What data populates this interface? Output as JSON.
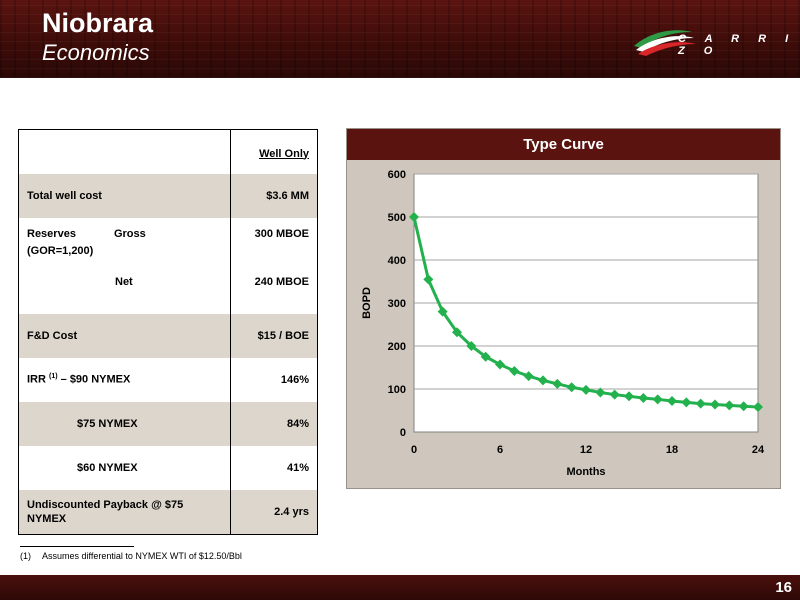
{
  "header": {
    "title": "Niobrara",
    "subtitle": "Economics",
    "logo_text": "C A R R I Z O"
  },
  "table": {
    "column_header": "Well Only",
    "rows": {
      "total_cost": {
        "label": "Total well cost",
        "value": "$3.6 MM"
      },
      "reserves": {
        "label": "Reserves",
        "label2": "(GOR=1,200)",
        "gross_label": "Gross",
        "gross_value": "300 MBOE",
        "net_label": "Net",
        "net_value": "240 MBOE"
      },
      "fd_cost": {
        "label": "F&D Cost",
        "value": "$15 / BOE"
      },
      "irr90": {
        "label_pre": "IRR",
        "sup": "(1)",
        "label_post": "– $90 NYMEX",
        "value": "146%"
      },
      "irr75": {
        "label": "$75 NYMEX",
        "value": "84%"
      },
      "irr60": {
        "label": "$60 NYMEX",
        "value": "41%"
      },
      "payback": {
        "label": "Undiscounted Payback @ $75 NYMEX",
        "value": "2.4 yrs"
      }
    }
  },
  "chart_data": {
    "type": "line",
    "title": "Type Curve",
    "xlabel": "Months",
    "ylabel": "BOPD",
    "xlim": [
      0,
      24
    ],
    "ylim": [
      0,
      600
    ],
    "x_ticks": [
      0,
      6,
      12,
      18,
      24
    ],
    "y_ticks": [
      0,
      100,
      200,
      300,
      400,
      500,
      600
    ],
    "grid": true,
    "series": [
      {
        "color": "#22b14c",
        "x": [
          0,
          1,
          2,
          3,
          4,
          5,
          6,
          7,
          8,
          9,
          10,
          11,
          12,
          13,
          14,
          15,
          16,
          17,
          18,
          19,
          20,
          21,
          22,
          23,
          24
        ],
        "y": [
          500,
          355,
          280,
          232,
          200,
          175,
          157,
          142,
          130,
          120,
          112,
          104,
          98,
          92,
          87,
          83,
          79,
          76,
          72,
          69,
          66,
          64,
          62,
          60,
          58
        ]
      }
    ]
  },
  "footnote": {
    "number": "(1)",
    "text": "Assumes differential to NYMEX WTI of $12.50/Bbl"
  },
  "page_number": "16"
}
